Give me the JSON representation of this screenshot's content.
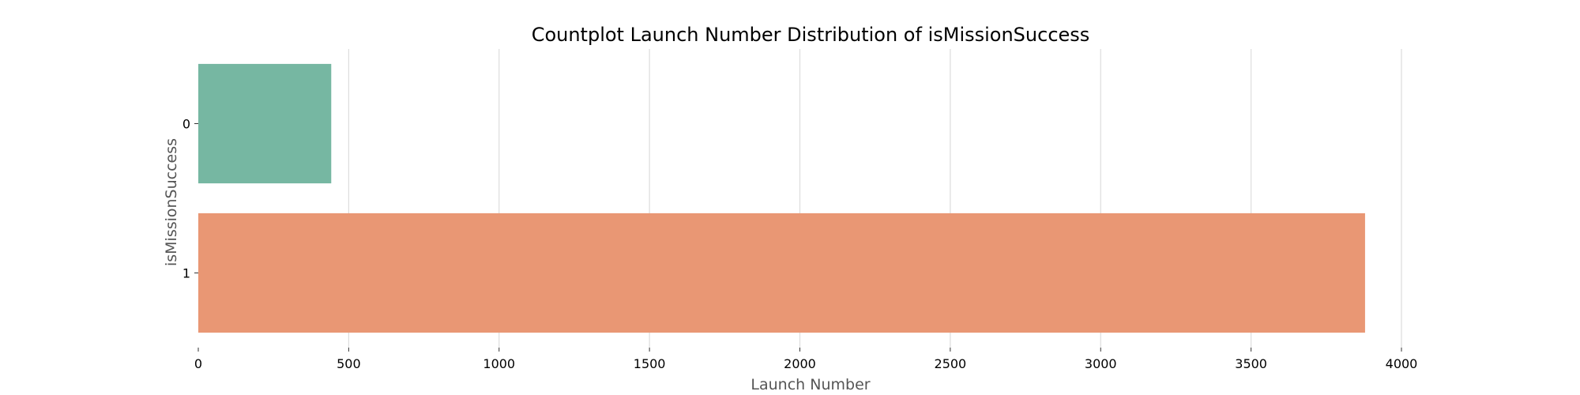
{
  "chart_data": {
    "type": "bar",
    "orientation": "horizontal",
    "title": "Countplot Launch Number Distribution of isMissionSuccess",
    "xlabel": "Launch Number",
    "ylabel": "isMissionSuccess",
    "categories": [
      "0",
      "1"
    ],
    "values": [
      442,
      3879
    ],
    "colors": [
      "#76b7a2",
      "#e99774"
    ],
    "xlim": [
      0,
      4000
    ],
    "xticks": [
      0,
      500,
      1000,
      1500,
      2000,
      2500,
      3000,
      3500,
      4000
    ],
    "grid": "vertical",
    "legend": "none"
  }
}
